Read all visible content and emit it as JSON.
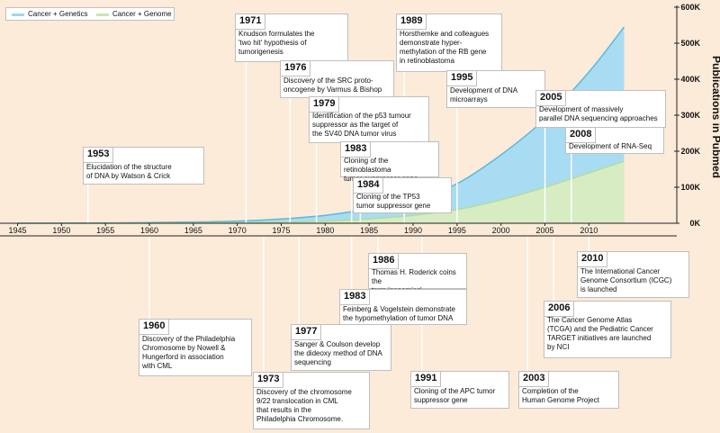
{
  "legend": [
    {
      "label": "Cancer + Genetics",
      "color": "#9fd6ef"
    },
    {
      "label": "Cancer + Genome",
      "color": "#c8e6b2"
    }
  ],
  "colors": {
    "background": "#fcebd8",
    "genetics_fill": "#a8dcf2",
    "genetics_line": "#5bb8e0",
    "genome_fill": "#d7ecc3",
    "genome_line": "#b4dc9a",
    "axis": "#222222"
  },
  "chart_data": {
    "type": "area",
    "ylabel": "Publications in Pubmed",
    "yticks": [
      "0K",
      "100K",
      "200K",
      "300K",
      "400K",
      "500K",
      "600K"
    ],
    "ytick_values": [
      0,
      100000,
      200000,
      300000,
      400000,
      500000,
      600000
    ],
    "ylim": [
      0,
      600000
    ],
    "xlim": [
      1943,
      2020
    ],
    "xticks": [
      1945,
      1950,
      1955,
      1960,
      1965,
      1970,
      1975,
      1980,
      1985,
      1990,
      1995,
      2000,
      2005,
      2010
    ],
    "x": [
      1945,
      1950,
      1955,
      1960,
      1965,
      1970,
      1975,
      1980,
      1985,
      1990,
      1995,
      2000,
      2005,
      2010,
      2014
    ],
    "series": [
      {
        "name": "Cancer + Genetics",
        "values": [
          0,
          200,
          800,
          2000,
          3500,
          6000,
          12000,
          22000,
          40000,
          65000,
          110000,
          190000,
          290000,
          420000,
          545000
        ]
      },
      {
        "name": "Cancer + Genome",
        "values": [
          0,
          50,
          150,
          400,
          800,
          1500,
          3000,
          6000,
          12000,
          22000,
          38000,
          65000,
          100000,
          140000,
          172000
        ]
      }
    ]
  },
  "events_top": [
    {
      "year": "1953",
      "at": 1953,
      "text": "Elucidation of the structure\nof DNA by Watson & Crick"
    },
    {
      "year": "1971",
      "at": 1971,
      "text": "Knudson formulates the\n'two hit'  hypothesis of\ntumorigenesis"
    },
    {
      "year": "1976",
      "at": 1976,
      "text": "Discovery of the SRC proto-\noncogene by Varmus & Bishop"
    },
    {
      "year": "1979",
      "at": 1979,
      "text": "Identification of the p53 tumour\nsuppressor as the target of\nthe SV40 DNA tumor virus"
    },
    {
      "year": "1983",
      "at": 1983,
      "text": "Cloning of the retinoblastoma\ntumor suppressor gene"
    },
    {
      "year": "1984",
      "at": 1984,
      "text": "Cloning of the TP53\ntumor suppressor gene"
    },
    {
      "year": "1989",
      "at": 1989,
      "text": "Horsthemke and colleagues\ndemonstrate hyper-\nmethylation of the RB gene\nin retinoblastoma"
    },
    {
      "year": "1995",
      "at": 1995,
      "text": "Development of DNA\nmicroarrays"
    },
    {
      "year": "2005",
      "at": 2005,
      "text": "Development of massively\nparallel DNA sequencing approaches"
    },
    {
      "year": "2008",
      "at": 2008,
      "text": "Development of RNA-Seq"
    }
  ],
  "events_bottom": [
    {
      "year": "1986",
      "at": 1986,
      "text": "Thomas H. Roderick coins the\nterm 'genomics'"
    },
    {
      "year": "2010",
      "at": 2010,
      "text": "The International Cancer\nGenome Consortium (ICGC)\nis launched"
    },
    {
      "year": "1983",
      "at": 1983,
      "text": "Feinberg & Vogelstein demonstrate\nthe hypomethylation of tumor DNA"
    },
    {
      "year": "2006",
      "at": 2006,
      "text": "The Cancer Genome Atlas\n(TCGA) and the Pediatric Cancer\nTARGET initiatives are launched\nby NCI"
    },
    {
      "year": "1960",
      "at": 1960,
      "text": "Discovery of the Philadelphia\nChromosome by Nowell &\nHungerford in association\nwith CML"
    },
    {
      "year": "1977",
      "at": 1977,
      "text": "Sanger & Coulson develop\nthe dideoxy method of DNA\nsequencing"
    },
    {
      "year": "1973",
      "at": 1973,
      "text": "Discovery of the chromosome\n9/22 translocation in CML\nthat results in the\nPhiladelphia Chromosome."
    },
    {
      "year": "1991",
      "at": 1991,
      "text": "Cloning of the APC tumor\nsuppressor gene"
    },
    {
      "year": "2003",
      "at": 2003,
      "text": "Completion of the\nHuman Genome Project"
    }
  ]
}
